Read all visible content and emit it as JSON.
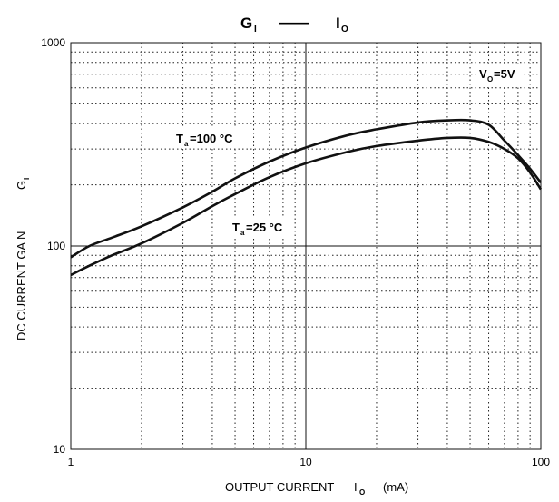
{
  "chart_data": {
    "type": "line",
    "title": {
      "left": "G",
      "left_sub": "I",
      "sep": "——",
      "right": "I",
      "right_sub": "O"
    },
    "xscale": "log",
    "yscale": "log",
    "xlim": [
      1,
      100
    ],
    "ylim": [
      10,
      1000
    ],
    "grid": true,
    "xticks": [
      {
        "value": 1,
        "label": "1"
      },
      {
        "value": 10,
        "label": "10"
      },
      {
        "value": 100,
        "label": "100"
      }
    ],
    "yticks": [
      {
        "value": 10,
        "label": "10"
      },
      {
        "value": 100,
        "label": "100"
      },
      {
        "value": 1000,
        "label": "1000"
      }
    ],
    "xlabel": {
      "text": "OUTPUT CURRENT",
      "sym": "I",
      "sym_sub": "O",
      "unit": "(mA)"
    },
    "ylabel": {
      "text": "DC CURRENT GA N",
      "sym": "G",
      "sym_sub": "I"
    },
    "series": [
      {
        "label": {
          "main": "T",
          "sub": "a",
          "rest": "=100 °C"
        },
        "x": [
          1,
          1.2,
          1.5,
          2,
          3,
          4,
          5,
          7,
          10,
          15,
          20,
          30,
          40,
          50,
          60,
          70,
          80,
          90,
          100
        ],
        "y": [
          88,
          100,
          110,
          125,
          155,
          185,
          215,
          260,
          305,
          350,
          375,
          405,
          415,
          415,
          395,
          330,
          280,
          240,
          205
        ]
      },
      {
        "label": {
          "main": "T",
          "sub": "a",
          "rest": "=25 °C"
        },
        "x": [
          1,
          1.2,
          1.5,
          2,
          3,
          4,
          5,
          7,
          10,
          15,
          20,
          30,
          40,
          50,
          60,
          70,
          80,
          90,
          100
        ],
        "y": [
          72,
          80,
          90,
          103,
          130,
          157,
          180,
          218,
          255,
          290,
          310,
          330,
          340,
          340,
          325,
          300,
          270,
          230,
          190
        ]
      }
    ],
    "condition": {
      "main": "V",
      "sub": "O",
      "rest": "=5V"
    }
  }
}
